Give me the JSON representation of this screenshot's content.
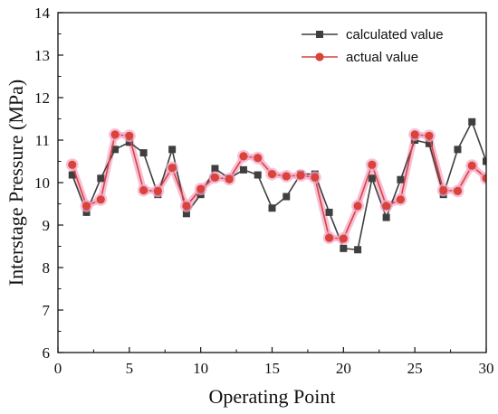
{
  "chart_data": {
    "type": "line",
    "title": "",
    "xlabel": "Operating Point",
    "ylabel": "Interstage Pressure (MPa)",
    "xlim": [
      0,
      30
    ],
    "ylim": [
      6,
      14
    ],
    "xticks": [
      0,
      5,
      10,
      15,
      20,
      25,
      30
    ],
    "yticks": [
      6,
      7,
      8,
      9,
      10,
      11,
      12,
      13,
      14
    ],
    "grid": false,
    "legend_position": "top-right",
    "x": [
      1,
      2,
      3,
      4,
      5,
      6,
      7,
      8,
      9,
      10,
      11,
      12,
      13,
      14,
      15,
      16,
      17,
      18,
      19,
      20,
      21,
      22,
      23,
      24,
      25,
      26,
      27,
      28,
      29,
      30
    ],
    "series": [
      {
        "name": "calculated value",
        "marker": "square",
        "color": "#3f3f3f",
        "values": [
          10.18,
          9.3,
          10.1,
          10.78,
          10.95,
          10.7,
          9.72,
          10.78,
          9.27,
          9.72,
          10.33,
          10.1,
          10.3,
          10.18,
          9.4,
          9.67,
          10.2,
          10.2,
          9.3,
          8.45,
          8.42,
          10.1,
          9.18,
          10.07,
          11.0,
          10.92,
          9.72,
          10.78,
          11.43,
          10.5
        ]
      },
      {
        "name": "actual value",
        "marker": "circle",
        "color": "#d9433b",
        "highlight": "#f4a9c9",
        "values": [
          10.42,
          9.45,
          9.6,
          11.13,
          11.1,
          9.82,
          9.8,
          10.35,
          9.45,
          9.85,
          10.12,
          10.08,
          10.62,
          10.58,
          10.2,
          10.15,
          10.17,
          10.12,
          8.7,
          8.68,
          9.45,
          10.42,
          9.45,
          9.6,
          11.13,
          11.1,
          9.82,
          9.8,
          10.4,
          10.1
        ]
      }
    ]
  }
}
